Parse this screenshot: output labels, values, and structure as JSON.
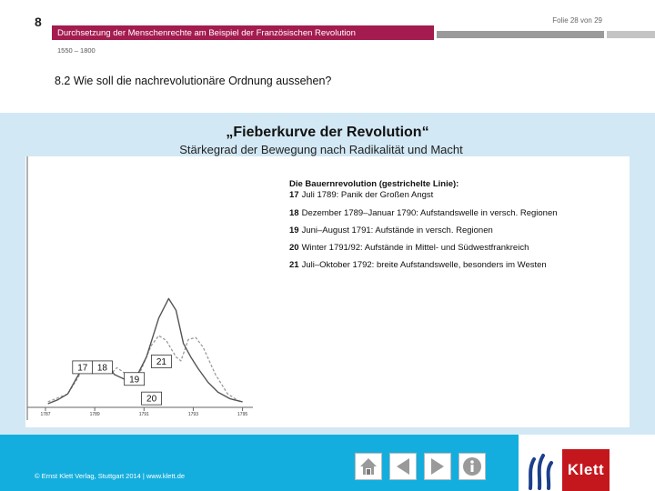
{
  "header": {
    "chapter_number": "8",
    "slide_counter": "Folie 28 von 29",
    "title": "Durchsetzung der Menschenrechte am Beispiel der Französischen Revolution",
    "period": "1550 – 1800",
    "section_heading": "8.2  Wie soll die nachrevolutionäre Ordnung aussehen?"
  },
  "chart_data": {
    "type": "line",
    "title": "„Fieberkurve der Revolution“",
    "subtitle": "Stärkegrad der Bewegung nach Radikalität und Macht",
    "xlabel": "",
    "ylabel": "",
    "x_ticks": [
      "1787",
      "1789",
      "1791",
      "1793",
      "1795"
    ],
    "xlim": [
      1787,
      1795.2
    ],
    "ylim": [
      0,
      100
    ],
    "grid": false,
    "series": [
      {
        "style": "dashed",
        "color": "#9a9a9a",
        "points": [
          [
            1787.1,
            2
          ],
          [
            1787.9,
            10
          ],
          [
            1788.3,
            26
          ],
          [
            1788.6,
            40
          ],
          [
            1788.8,
            41
          ],
          [
            1789.0,
            39
          ],
          [
            1789.2,
            41
          ],
          [
            1789.5,
            43
          ],
          [
            1789.7,
            32
          ],
          [
            1789.9,
            37
          ],
          [
            1790.3,
            30
          ],
          [
            1790.5,
            26
          ],
          [
            1790.8,
            30
          ],
          [
            1791.0,
            42
          ],
          [
            1791.3,
            60
          ],
          [
            1791.6,
            70
          ],
          [
            1791.9,
            65
          ],
          [
            1792.3,
            48
          ],
          [
            1792.5,
            44
          ],
          [
            1792.8,
            66
          ],
          [
            1793.1,
            68
          ],
          [
            1793.4,
            58
          ],
          [
            1793.9,
            30
          ],
          [
            1794.4,
            10
          ],
          [
            1794.9,
            2
          ]
        ]
      },
      {
        "style": "solid",
        "color": "#555555",
        "points": [
          [
            1787.1,
            0
          ],
          [
            1787.5,
            4
          ],
          [
            1787.9,
            10
          ],
          [
            1788.3,
            28
          ],
          [
            1788.6,
            40
          ],
          [
            1789.0,
            37
          ],
          [
            1789.5,
            40
          ],
          [
            1789.8,
            30
          ],
          [
            1790.3,
            24
          ],
          [
            1790.7,
            28
          ],
          [
            1791.1,
            48
          ],
          [
            1791.6,
            88
          ],
          [
            1792.0,
            108
          ],
          [
            1792.3,
            96
          ],
          [
            1792.6,
            62
          ],
          [
            1792.9,
            48
          ],
          [
            1793.2,
            36
          ],
          [
            1793.6,
            22
          ],
          [
            1794.0,
            12
          ],
          [
            1794.5,
            5
          ],
          [
            1795.0,
            2
          ]
        ]
      }
    ],
    "labels": [
      {
        "text": "17",
        "x": 1788.1,
        "y": 44
      },
      {
        "text": "18",
        "x": 1788.9,
        "y": 44
      },
      {
        "text": "19",
        "x": 1790.2,
        "y": 32
      },
      {
        "text": "20",
        "x": 1790.9,
        "y": 12
      },
      {
        "text": "21",
        "x": 1791.3,
        "y": 50
      }
    ],
    "legend": {
      "heading": "Die Bauernrevolution (gestrichelte Linie):",
      "items": [
        {
          "number": "17",
          "text": "Juli 1789: Panik der Großen Angst"
        },
        {
          "number": "18",
          "text": "Dezember 1789–Januar 1790: Aufstandswelle in versch. Regionen"
        },
        {
          "number": "19",
          "text": "Juni–August 1791: Aufstände in versch. Regionen"
        },
        {
          "number": "20",
          "text": "Winter 1791/92: Aufstände in Mittel- und Südwestfrankreich"
        },
        {
          "number": "21",
          "text": "Juli–Oktober 1792: breite Aufstandswelle, besonders im Westen"
        }
      ]
    }
  },
  "footer": {
    "credit": "© Ernst Klett Verlag, Stuttgart 2014 | www.klett.de",
    "nav_buttons": [
      {
        "icon": "home-icon"
      },
      {
        "icon": "previous-icon"
      },
      {
        "icon": "next-icon"
      },
      {
        "icon": "info-icon"
      }
    ],
    "brand_name": "Klett"
  },
  "colors": {
    "title_bar": "#a41c4f",
    "panel": "#d2e8f4",
    "footer": "#14aede",
    "brand": "#c4171d"
  }
}
